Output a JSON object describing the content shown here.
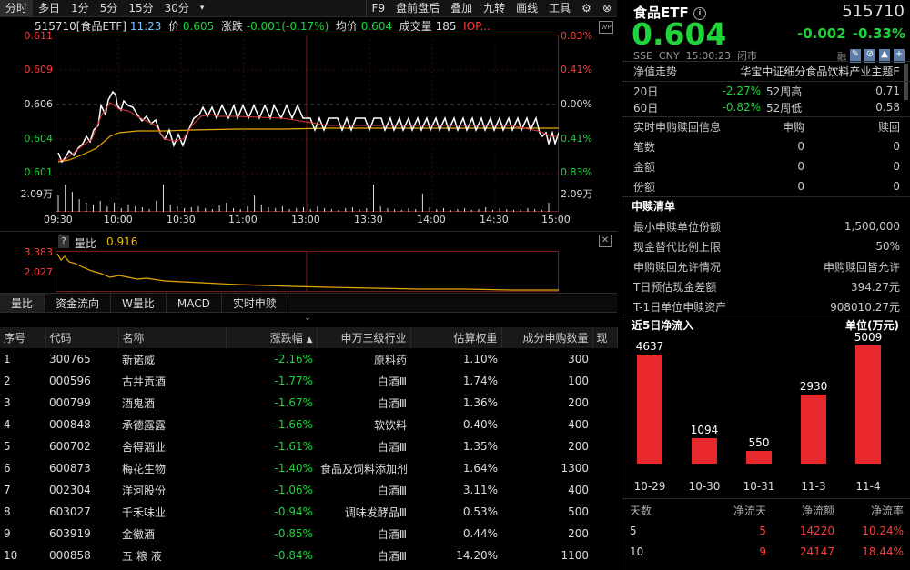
{
  "toolbar": {
    "tabs": [
      "分时",
      "多日",
      "1分",
      "5分",
      "15分",
      "30分"
    ],
    "more_icon": "caret-down",
    "tools": [
      "F9",
      "盘前盘后",
      "叠加",
      "九转",
      "画线",
      "工具"
    ],
    "icons": [
      "gear-icon",
      "x-circle-icon"
    ]
  },
  "info_line": {
    "code_name": "515710[食品ETF]",
    "time": "11:23",
    "price_label": "价",
    "price": "0.605",
    "change_label": "涨跌",
    "change": "-0.001(-0.17%)",
    "avg_label": "均价",
    "avg": "0.604",
    "volume_label": "成交量",
    "volume": "185",
    "iop": "IOP..."
  },
  "price_chart": {
    "left_labels": [
      "0.611",
      "0.609",
      "0.606",
      "0.604",
      "0.601",
      "2.09万"
    ],
    "right_labels": [
      "0.83%",
      "0.41%",
      "0.00%",
      "0.41%",
      "0.83%",
      "2.09万"
    ],
    "time_labels": [
      "09:30",
      "10:00",
      "10:30",
      "11:00",
      "13:00",
      "13:30",
      "14:00",
      "14:30",
      "15:00"
    ],
    "price_range": [
      0.601,
      0.611
    ],
    "prev_close": 0.606
  },
  "ratio_panel": {
    "help": "?",
    "label": "量比",
    "value": "0.916",
    "left_labels": [
      "3.383",
      "2.027"
    ]
  },
  "subtabs": [
    "量比",
    "资金流向",
    "W量比",
    "MACD",
    "实时申赎"
  ],
  "table": {
    "headers": [
      "序号",
      "代码",
      "名称",
      "涨跌幅",
      "申万三级行业",
      "估算权重",
      "成分申购数量",
      "现"
    ],
    "rows": [
      [
        "1",
        "300765",
        "新诺威",
        "-2.16%",
        "原料药",
        "1.10%",
        "300"
      ],
      [
        "2",
        "000596",
        "古井贡酒",
        "-1.77%",
        "白酒Ⅲ",
        "1.74%",
        "100"
      ],
      [
        "3",
        "000799",
        "酒鬼酒",
        "-1.67%",
        "白酒Ⅲ",
        "1.36%",
        "200"
      ],
      [
        "4",
        "000848",
        "承德露露",
        "-1.66%",
        "软饮料",
        "0.40%",
        "400"
      ],
      [
        "5",
        "600702",
        "舍得酒业",
        "-1.61%",
        "白酒Ⅲ",
        "1.35%",
        "200"
      ],
      [
        "6",
        "600873",
        "梅花生物",
        "-1.40%",
        "食品及饲料添加剂",
        "1.64%",
        "1300"
      ],
      [
        "7",
        "002304",
        "洋河股份",
        "-1.06%",
        "白酒Ⅲ",
        "3.11%",
        "400"
      ],
      [
        "8",
        "603027",
        "千禾味业",
        "-0.94%",
        "调味发酵品Ⅲ",
        "0.53%",
        "500"
      ],
      [
        "9",
        "603919",
        "金徽酒",
        "-0.85%",
        "白酒Ⅲ",
        "0.44%",
        "200"
      ],
      [
        "10",
        "000858",
        "五 粮 液",
        "-0.84%",
        "白酒Ⅲ",
        "14.20%",
        "1100"
      ]
    ]
  },
  "right": {
    "name": "食品ETF",
    "code": "515710",
    "price": "0.604",
    "change": "-0.002",
    "change_pct": "-0.33%",
    "exchange": "SSE",
    "currency": "CNY",
    "time": "15:00:23",
    "status": "闭市",
    "tags": [
      "融"
    ],
    "nav_label": "净值走势",
    "index_name": "华宝中证细分食品饮料产业主题E",
    "d20_label": "20日",
    "d20_pct": "-2.27%",
    "high52_label": "52周高",
    "high52": "0.71",
    "d60_label": "60日",
    "d60_pct": "-0.82%",
    "low52_label": "52周低",
    "low52": "0.58",
    "realtime_title": "实时申购赎回信息",
    "realtime_cols": [
      "申购",
      "赎回"
    ],
    "realtime_rows": [
      [
        "笔数",
        "0",
        "0"
      ],
      [
        "金额",
        "0",
        "0"
      ],
      [
        "份额",
        "0",
        "0"
      ]
    ],
    "list_title": "申赎清单",
    "list_rows": [
      [
        "最小申赎单位份额",
        "1,500,000"
      ],
      [
        "现金替代比例上限",
        "50%"
      ],
      [
        "申购赎回允许情况",
        "申购赎回皆允许"
      ],
      [
        "T日预估现金差额",
        "394.27元"
      ],
      [
        "T-1日单位申赎资产",
        "908010.27元"
      ]
    ],
    "inflow_title": "近5日净流入",
    "inflow_unit": "单位(万元)",
    "inflow_table_headers": [
      "天数",
      "净流天",
      "净流额",
      "净流率"
    ],
    "inflow_table_rows": [
      [
        "5",
        "5",
        "14220",
        "10.24%"
      ],
      [
        "10",
        "9",
        "24147",
        "18.44%"
      ]
    ]
  },
  "chart_data": {
    "type": "bar",
    "categories": [
      "10-29",
      "10-30",
      "10-31",
      "11-3",
      "11-4"
    ],
    "values": [
      4637,
      1094,
      550,
      2930,
      5009
    ],
    "ylabel": "单位(万元)"
  }
}
